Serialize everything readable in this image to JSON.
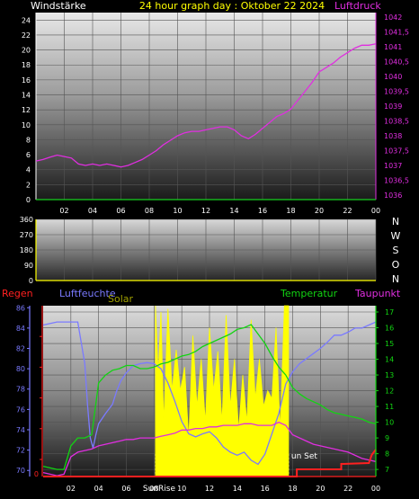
{
  "header": {
    "left_title": "Windstärke",
    "center_title": "24 hour graph day : Oktober 22 2024",
    "right_title": "Luftdruck"
  },
  "colors": {
    "wind": "#16d11f",
    "pressure": "#e02ee0",
    "temperature": "#12d412",
    "humidity": "#7a7aff",
    "solar": "#ffff00",
    "rain": "#ff2020",
    "dewpoint": "#e02ee0",
    "winddir_axis": "#ffff00",
    "regen_axis": "#ff2020",
    "humidity_axis": "#7a7aff",
    "temp_axis": "#12d412"
  },
  "x_ticks": [
    "02",
    "04",
    "06",
    "08",
    "10",
    "12",
    "14",
    "16",
    "18",
    "20",
    "22",
    "00"
  ],
  "panel1": {
    "left_ticks": [
      "24",
      "22",
      "20",
      "18",
      "16",
      "14",
      "12",
      "10",
      "8",
      "6",
      "4",
      "2",
      "0"
    ],
    "right_ticks": [
      "1042",
      "1041,5",
      "1041",
      "1040,5",
      "1040",
      "1039,5",
      "1039",
      "1038,5",
      "1038",
      "1037,5",
      "1037",
      "1036,5",
      "1036"
    ]
  },
  "panel2": {
    "left_ticks": [
      "360",
      "270",
      "180",
      "90",
      "0"
    ],
    "compass": [
      "N",
      "W",
      "S",
      "O",
      "N"
    ]
  },
  "panel3": {
    "labels": {
      "regen": "Regen",
      "luftfeuchte": "Luftfeuchte",
      "solar": "Solar",
      "temperatur": "Temperatur",
      "taupunkt": "Taupunkt"
    },
    "regen_ticks": [
      "0"
    ],
    "humidity_ticks": [
      "86",
      "84",
      "82",
      "80",
      "78",
      "76",
      "74",
      "72",
      "70"
    ],
    "temp_ticks": [
      "17",
      "16",
      "15",
      "14",
      "13",
      "12",
      "11",
      "10",
      "9",
      "8",
      "7"
    ],
    "sunrise_label": "SunRise",
    "sunset_label": "un Set"
  },
  "chart_data": [
    {
      "type": "line",
      "title": "24 hour graph day : Oktober 22 2024",
      "x_unit": "hour",
      "x_range": [
        0,
        24
      ],
      "axes": {
        "left": {
          "label": "Windstärke",
          "range": [
            0,
            25
          ]
        },
        "right": {
          "label": "Luftdruck",
          "range": [
            1035.85,
            1042.15
          ]
        }
      },
      "series": [
        {
          "name": "Windstärke",
          "axis": "left",
          "x": [
            0,
            3,
            6,
            9,
            12,
            15,
            18,
            21,
            24
          ],
          "y": [
            0,
            0,
            0,
            0,
            0,
            0,
            0,
            0,
            0
          ]
        },
        {
          "name": "Luftdruck",
          "axis": "right",
          "x": [
            0,
            0.5,
            1,
            1.5,
            2,
            2.5,
            3,
            3.5,
            4,
            4.5,
            5,
            5.5,
            6,
            6.5,
            7,
            7.5,
            8,
            8.5,
            9,
            9.5,
            10,
            10.5,
            11,
            11.5,
            12,
            12.5,
            13,
            13.5,
            14,
            14.5,
            15,
            15.5,
            16,
            16.5,
            17,
            17.5,
            18,
            18.5,
            19,
            19.5,
            20,
            20.5,
            21,
            21.5,
            22,
            22.5,
            23,
            23.5,
            24
          ],
          "y": [
            1037.15,
            1037.2,
            1037.28,
            1037.35,
            1037.3,
            1037.25,
            1037.05,
            1037.0,
            1037.05,
            1037.0,
            1037.05,
            1037.0,
            1036.95,
            1037.0,
            1037.1,
            1037.2,
            1037.35,
            1037.5,
            1037.7,
            1037.85,
            1038.0,
            1038.1,
            1038.15,
            1038.15,
            1038.2,
            1038.25,
            1038.3,
            1038.3,
            1038.2,
            1038.0,
            1037.9,
            1038.05,
            1038.25,
            1038.45,
            1038.65,
            1038.75,
            1038.9,
            1039.2,
            1039.5,
            1039.8,
            1040.15,
            1040.3,
            1040.45,
            1040.65,
            1040.8,
            1040.95,
            1041.05,
            1041.05,
            1041.1
          ]
        }
      ]
    },
    {
      "type": "line",
      "x_unit": "hour",
      "x_range": [
        0,
        24
      ],
      "axes": {
        "left": {
          "range": [
            0,
            360
          ]
        }
      },
      "series": []
    },
    {
      "type": "line",
      "x_unit": "hour",
      "x_range": [
        0,
        24
      ],
      "sunrise_hour": 8.1,
      "sunset_hour": 17.7,
      "axes": {
        "left_rain": {
          "label": "Regen",
          "range": [
            0,
            1
          ]
        },
        "left_humidity": {
          "label": "Luftfeuchte",
          "range": [
            69.4,
            86.2
          ]
        },
        "right": {
          "label": "Temperatur",
          "range": [
            6.55,
            17.4
          ]
        }
      },
      "series": [
        {
          "name": "Luftfeuchte",
          "axis": "left_humidity",
          "x": [
            0,
            1,
            1.5,
            2,
            2.5,
            3,
            3.2,
            3.4,
            3.6,
            3.8,
            4,
            4.5,
            5,
            5.3,
            5.6,
            6,
            6.5,
            7,
            7.5,
            8,
            8.5,
            9,
            9.5,
            10,
            10.5,
            11,
            11.5,
            12,
            12.5,
            13,
            13.5,
            14,
            14.5,
            15,
            15.5,
            16,
            16.5,
            17,
            17.5,
            18,
            18.5,
            19,
            19.5,
            20,
            20.5,
            21,
            21.5,
            22,
            22.5,
            23,
            23.5,
            24
          ],
          "y": [
            84.3,
            84.6,
            84.6,
            84.6,
            84.6,
            80.5,
            76.5,
            73.2,
            72.2,
            73.5,
            74.6,
            75.6,
            76.5,
            77.8,
            78.8,
            79.6,
            80.3,
            80.5,
            80.6,
            80.5,
            80.0,
            78.6,
            76.8,
            74.8,
            73.6,
            73.3,
            73.6,
            73.8,
            73.2,
            72.3,
            71.8,
            71.5,
            71.8,
            71.0,
            70.6,
            71.6,
            73.6,
            75.6,
            78.5,
            79.7,
            80.5,
            81.0,
            81.5,
            82.0,
            82.6,
            83.3,
            83.3,
            83.6,
            84.0,
            84.0,
            84.3,
            84.6
          ]
        },
        {
          "name": "Temperatur",
          "axis": "right",
          "x": [
            0,
            0.5,
            1,
            1.5,
            2,
            2.5,
            3,
            3.5,
            4,
            4.5,
            5,
            5.5,
            6,
            6.5,
            7,
            7.5,
            8,
            8.5,
            9,
            9.5,
            10,
            10.5,
            11,
            11.5,
            12,
            12.5,
            13,
            13.5,
            14,
            14.5,
            15,
            15.5,
            16,
            16.5,
            17,
            17.5,
            18,
            18.5,
            19,
            19.5,
            20,
            20.5,
            21,
            21.5,
            22,
            22.5,
            23,
            23.5,
            24
          ],
          "y": [
            7.2,
            7.1,
            7.0,
            7.0,
            8.5,
            9.0,
            9.0,
            9.2,
            12.5,
            13.0,
            13.3,
            13.4,
            13.6,
            13.6,
            13.4,
            13.4,
            13.5,
            13.7,
            13.8,
            14.0,
            14.2,
            14.3,
            14.5,
            14.8,
            15.0,
            15.2,
            15.4,
            15.6,
            15.9,
            16.0,
            16.2,
            15.6,
            15.0,
            14.2,
            13.5,
            13.0,
            12.2,
            11.8,
            11.5,
            11.3,
            11.1,
            10.8,
            10.6,
            10.5,
            10.4,
            10.3,
            10.2,
            10.0,
            9.9
          ]
        },
        {
          "name": "Taupunkt",
          "axis": "right",
          "x": [
            0,
            0.5,
            1,
            1.5,
            2,
            2.5,
            3,
            3.5,
            4,
            4.5,
            5,
            5.5,
            6,
            6.5,
            7,
            7.5,
            8,
            8.5,
            9,
            9.5,
            10,
            10.5,
            11,
            11.5,
            12,
            12.5,
            13,
            13.5,
            14,
            14.5,
            15,
            15.5,
            16,
            16.5,
            17,
            17.5,
            18,
            18.5,
            19,
            19.5,
            20,
            20.5,
            21,
            21.5,
            22,
            22.5,
            23,
            23.5,
            24
          ],
          "y": [
            6.8,
            6.7,
            6.6,
            6.7,
            7.8,
            8.1,
            8.2,
            8.3,
            8.5,
            8.6,
            8.7,
            8.8,
            8.9,
            8.9,
            9.0,
            9.0,
            9.0,
            9.1,
            9.2,
            9.3,
            9.5,
            9.5,
            9.6,
            9.6,
            9.7,
            9.7,
            9.8,
            9.8,
            9.8,
            9.9,
            9.9,
            9.8,
            9.8,
            9.8,
            10.0,
            9.8,
            9.2,
            9.0,
            8.8,
            8.6,
            8.5,
            8.4,
            8.3,
            8.2,
            8.1,
            7.9,
            7.7,
            7.6,
            7.5
          ]
        },
        {
          "name": "Solar",
          "axis": "right",
          "x": [
            8.1,
            8.3,
            8.5,
            8.7,
            9.0,
            9.3,
            9.6,
            9.9,
            10.2,
            10.5,
            10.8,
            11.1,
            11.4,
            11.7,
            12.0,
            12.3,
            12.6,
            12.9,
            13.2,
            13.5,
            13.8,
            14.1,
            14.4,
            14.7,
            15.0,
            15.3,
            15.6,
            15.9,
            16.2,
            16.5,
            16.8,
            17.1,
            17.4,
            17.7
          ],
          "y": [
            17.4,
            13.0,
            17.0,
            10.0,
            17.2,
            12.0,
            14.6,
            12.0,
            13.5,
            9.0,
            15.5,
            11.0,
            14.0,
            10.0,
            16.0,
            12.0,
            14.5,
            10.0,
            16.8,
            11.0,
            14.0,
            9.5,
            13.0,
            10.0,
            16.5,
            11.5,
            14.0,
            11.0,
            12.0,
            11.5,
            16.0,
            9.5,
            17.4,
            17.4
          ]
        },
        {
          "name": "Regen",
          "axis": "left_rain",
          "x": [
            0,
            18.3,
            18.3,
            21.5,
            21.5,
            23.5,
            23.7,
            24
          ],
          "y": [
            0,
            0,
            0.4,
            0.4,
            0.7,
            0.75,
            1.2,
            1.5
          ]
        }
      ]
    }
  ]
}
